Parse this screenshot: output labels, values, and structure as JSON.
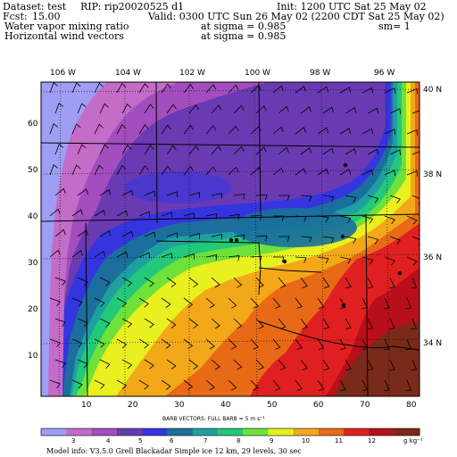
{
  "header": {
    "dataset": "Dataset: test",
    "rip": "RIP: rip20020525 d1",
    "init": "Init: 1200 UTC Sat 25 May 02",
    "fcst_label": "Fcst:",
    "fcst_value": "15.00",
    "valid": "Valid: 0300 UTC Sun 26 May 02 (2200 CDT Sat 25 May 02)",
    "field1": "Water vapor mixing ratio",
    "field1_level": "at sigma = 0.985",
    "field1_units": "sm= 1",
    "field2": "Horizontal wind vectors",
    "field2_level": "at sigma = 0.985"
  },
  "map": {
    "lon_labels": [
      "106 W",
      "104 W",
      "102 W",
      "100 W",
      "98 W",
      "96 W"
    ],
    "lat_labels": [
      "40 N",
      "38 N",
      "36 N",
      "34 N"
    ],
    "x_ticks": [
      "10",
      "20",
      "30",
      "40",
      "50",
      "60",
      "70",
      "80"
    ],
    "y_ticks": [
      "10",
      "20",
      "30",
      "40",
      "50",
      "60"
    ]
  },
  "barb_caption": "BARB VECTORS:  FULL BARB = 5 m s⁻¹",
  "legend": {
    "labels": [
      "3",
      "4",
      "5",
      "6",
      "7",
      "8",
      "9",
      "10",
      "11",
      "12"
    ],
    "units": "g kg⁻¹",
    "colors": [
      "#9e9ef5",
      "#c36cc8",
      "#a24ebf",
      "#6a3ab3",
      "#3535e0",
      "#1b6f9c",
      "#1ea0a0",
      "#23c87a",
      "#6fe23a",
      "#e8f020",
      "#f2a818",
      "#e86a16",
      "#e02020",
      "#b8101a",
      "#7a2a18"
    ]
  },
  "footer": "Model info: V3.5.0   Grell    Blackadar   Simple ice    12 km,  29 levels,   30 sec"
}
